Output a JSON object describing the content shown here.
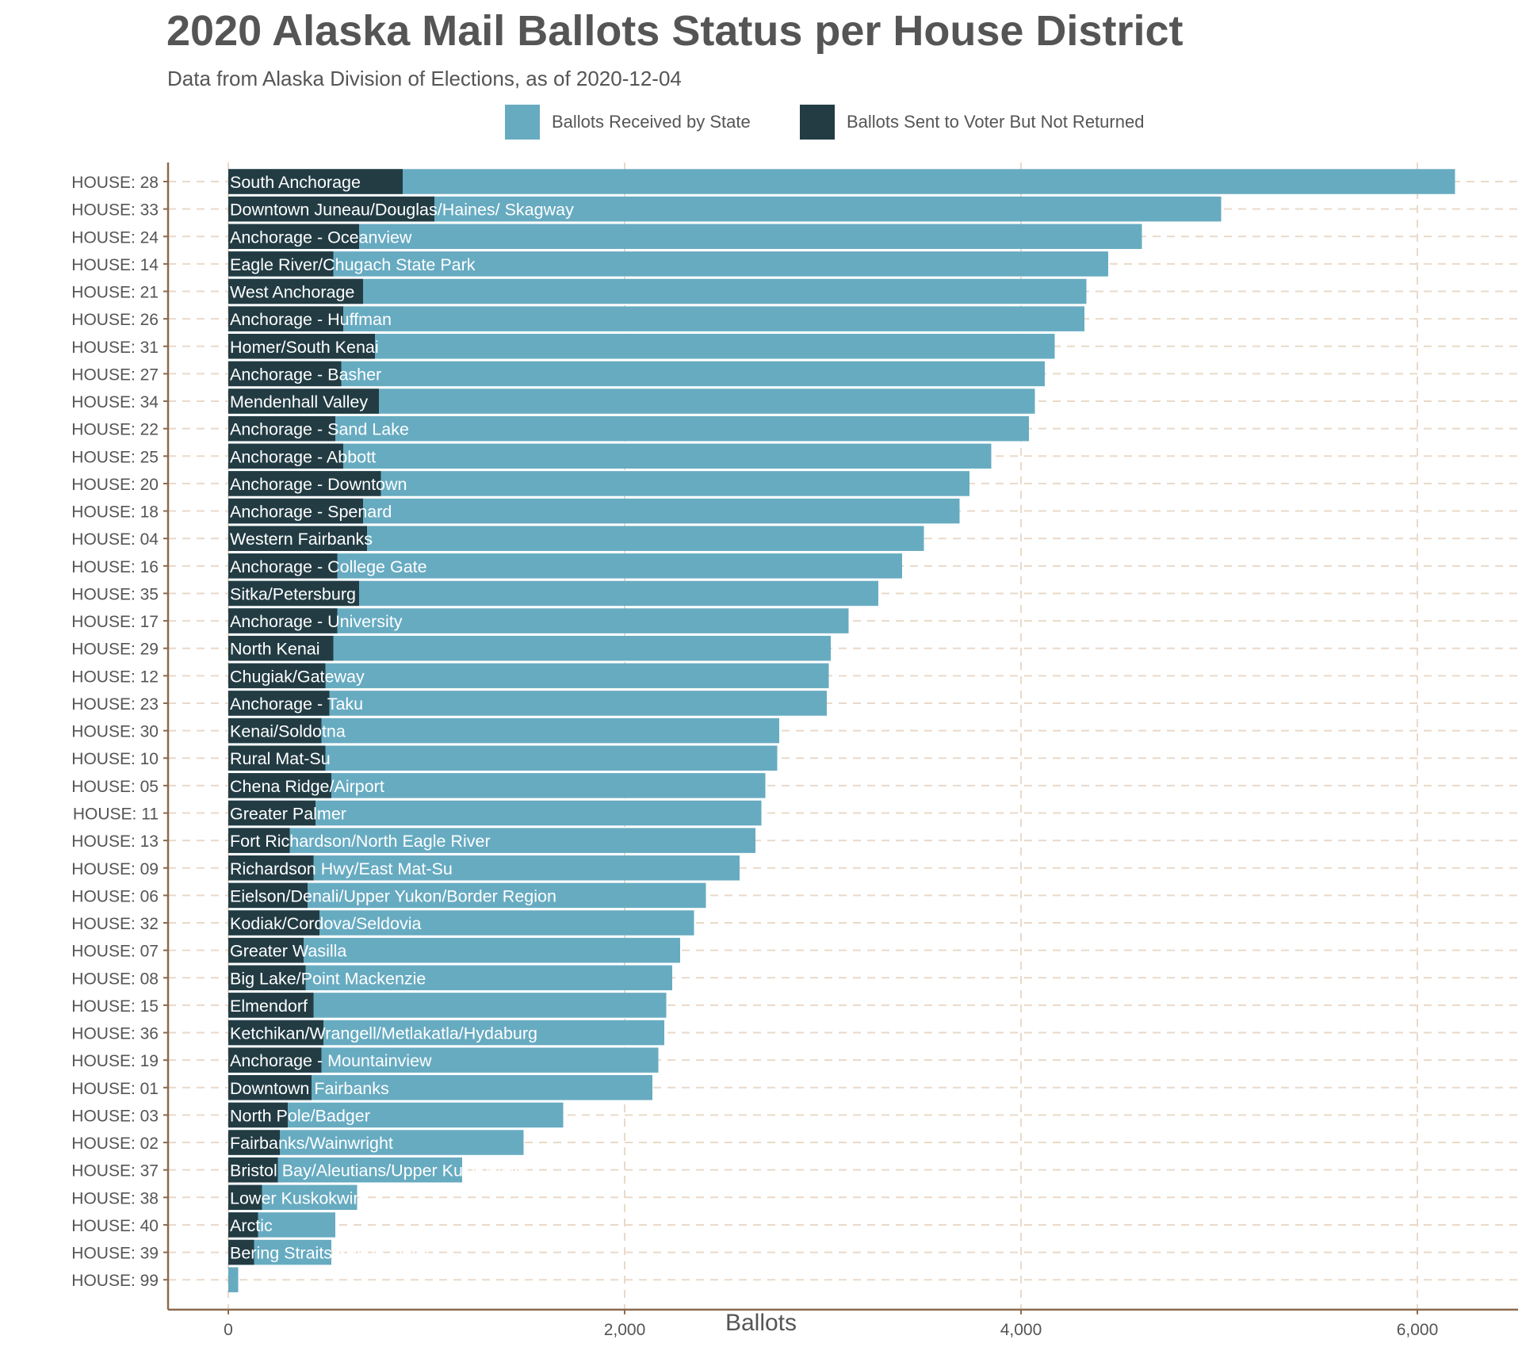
{
  "chart_data": {
    "type": "bar",
    "orientation": "horizontal",
    "stacking": "overlay",
    "title": "2020 Alaska Mail Ballots Status per House District",
    "subtitle": "Data from Alaska Division of Elections, as of 2020-12-04",
    "xlabel": "Ballots",
    "ylabel": "",
    "xlim": [
      0,
      6400
    ],
    "xticks": [
      0,
      2000,
      4000,
      6000
    ],
    "xtick_labels": [
      "0",
      "2,000",
      "4,000",
      "6,000"
    ],
    "grid": true,
    "legend_position": "top",
    "series": [
      {
        "name": "Ballots Received by State",
        "color": "#67abc1"
      },
      {
        "name": "Ballots Sent to Voter But Not Returned",
        "color": "#233c44"
      }
    ],
    "rows": [
      {
        "district": "HOUSE: 28",
        "name": "South Anchorage",
        "received": 6190,
        "not_returned": 880
      },
      {
        "district": "HOUSE: 33",
        "name": "Downtown Juneau/Douglas/Haines/ Skagway",
        "received": 5010,
        "not_returned": 1040
      },
      {
        "district": "HOUSE: 24",
        "name": "Anchorage - Oceanview",
        "received": 4610,
        "not_returned": 660
      },
      {
        "district": "HOUSE: 14",
        "name": "Eagle River/Chugach State Park",
        "received": 4440,
        "not_returned": 530
      },
      {
        "district": "HOUSE: 21",
        "name": "West Anchorage",
        "received": 4330,
        "not_returned": 680
      },
      {
        "district": "HOUSE: 26",
        "name": "Anchorage - Huffman",
        "received": 4320,
        "not_returned": 580
      },
      {
        "district": "HOUSE: 31",
        "name": "Homer/South Kenai",
        "received": 4170,
        "not_returned": 740
      },
      {
        "district": "HOUSE: 27",
        "name": "Anchorage - Basher",
        "received": 4120,
        "not_returned": 570
      },
      {
        "district": "HOUSE: 34",
        "name": "Mendenhall Valley",
        "received": 4070,
        "not_returned": 760
      },
      {
        "district": "HOUSE: 22",
        "name": "Anchorage - Sand Lake",
        "received": 4040,
        "not_returned": 540
      },
      {
        "district": "HOUSE: 25",
        "name": "Anchorage - Abbott",
        "received": 3850,
        "not_returned": 580
      },
      {
        "district": "HOUSE: 20",
        "name": "Anchorage - Downtown",
        "received": 3740,
        "not_returned": 770
      },
      {
        "district": "HOUSE: 18",
        "name": "Anchorage - Spenard",
        "received": 3690,
        "not_returned": 680
      },
      {
        "district": "HOUSE: 04",
        "name": "Western Fairbanks",
        "received": 3510,
        "not_returned": 700
      },
      {
        "district": "HOUSE: 16",
        "name": "Anchorage - College Gate",
        "received": 3400,
        "not_returned": 550
      },
      {
        "district": "HOUSE: 35",
        "name": "Sitka/Petersburg",
        "received": 3280,
        "not_returned": 660
      },
      {
        "district": "HOUSE: 17",
        "name": "Anchorage - University",
        "received": 3130,
        "not_returned": 550
      },
      {
        "district": "HOUSE: 29",
        "name": "North Kenai",
        "received": 3040,
        "not_returned": 530
      },
      {
        "district": "HOUSE: 12",
        "name": "Chugiak/Gateway",
        "received": 3030,
        "not_returned": 490
      },
      {
        "district": "HOUSE: 23",
        "name": "Anchorage - Taku",
        "received": 3020,
        "not_returned": 510
      },
      {
        "district": "HOUSE: 30",
        "name": "Kenai/Soldotna",
        "received": 2780,
        "not_returned": 470
      },
      {
        "district": "HOUSE: 10",
        "name": "Rural Mat-Su",
        "received": 2770,
        "not_returned": 490
      },
      {
        "district": "HOUSE: 05",
        "name": "Chena Ridge/Airport",
        "received": 2710,
        "not_returned": 520
      },
      {
        "district": "HOUSE: 11",
        "name": "Greater Palmer",
        "received": 2690,
        "not_returned": 440
      },
      {
        "district": "HOUSE: 13",
        "name": "Fort Richardson/North Eagle River",
        "received": 2660,
        "not_returned": 310
      },
      {
        "district": "HOUSE: 09",
        "name": "Richardson Hwy/East Mat-Su",
        "received": 2580,
        "not_returned": 430
      },
      {
        "district": "HOUSE: 06",
        "name": "Eielson/Denali/Upper Yukon/Border Region",
        "received": 2410,
        "not_returned": 400
      },
      {
        "district": "HOUSE: 32",
        "name": "Kodiak/Cordova/Seldovia",
        "received": 2350,
        "not_returned": 460
      },
      {
        "district": "HOUSE: 07",
        "name": "Greater Wasilla",
        "received": 2280,
        "not_returned": 380
      },
      {
        "district": "HOUSE: 08",
        "name": "Big Lake/Point Mackenzie",
        "received": 2240,
        "not_returned": 390
      },
      {
        "district": "HOUSE: 15",
        "name": "Elmendorf",
        "received": 2210,
        "not_returned": 430
      },
      {
        "district": "HOUSE: 36",
        "name": "Ketchikan/Wrangell/Metlakatla/Hydaburg",
        "received": 2200,
        "not_returned": 480
      },
      {
        "district": "HOUSE: 19",
        "name": "Anchorage - Mountainview",
        "received": 2170,
        "not_returned": 470
      },
      {
        "district": "HOUSE: 01",
        "name": "Downtown Fairbanks",
        "received": 2140,
        "not_returned": 420
      },
      {
        "district": "HOUSE: 03",
        "name": "North Pole/Badger",
        "received": 1690,
        "not_returned": 300
      },
      {
        "district": "HOUSE: 02",
        "name": "Fairbanks/Wainwright",
        "received": 1490,
        "not_returned": 260
      },
      {
        "district": "HOUSE: 37",
        "name": "Bristol Bay/Aleutians/Upper Kuskokwim",
        "received": 1180,
        "not_returned": 250
      },
      {
        "district": "HOUSE: 38",
        "name": "Lower Kuskokwim",
        "received": 650,
        "not_returned": 170
      },
      {
        "district": "HOUSE: 40",
        "name": "Arctic",
        "received": 540,
        "not_returned": 150
      },
      {
        "district": "HOUSE: 39",
        "name": "Bering Straits/Yukon-Delta",
        "received": 520,
        "not_returned": 130
      },
      {
        "district": "HOUSE: 99",
        "name": "",
        "received": 50,
        "not_returned": 0
      }
    ]
  }
}
